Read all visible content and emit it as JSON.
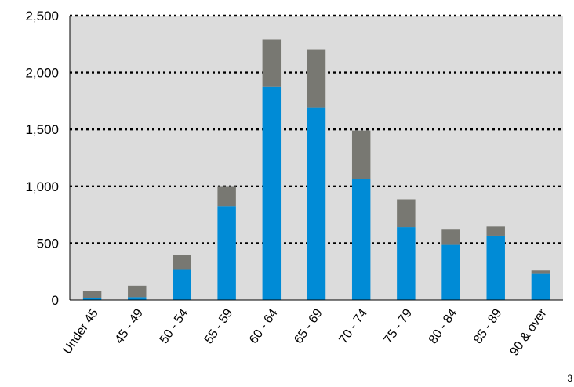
{
  "chart_data": {
    "type": "bar",
    "stacked": true,
    "categories": [
      "Under 45",
      "45 - 49",
      "50 - 54",
      "55 - 59",
      "60 - 64",
      "65 - 69",
      "70 - 74",
      "75 - 79",
      "80 - 84",
      "85 - 89",
      "90 & over"
    ],
    "series": [
      {
        "color": "#008bd6",
        "values": [
          15,
          25,
          265,
          825,
          1875,
          1690,
          1065,
          640,
          485,
          565,
          230
        ]
      },
      {
        "color": "#787872",
        "values": [
          65,
          100,
          130,
          170,
          415,
          510,
          425,
          245,
          140,
          80,
          30
        ]
      }
    ],
    "y_ticks": [
      "0",
      "500",
      "1,000",
      "1,500",
      "2,000",
      "2,500"
    ],
    "ylim": [
      0,
      2500
    ],
    "grid": "horizontal-dotted",
    "plot_background": "#dcdcdc",
    "legend": "none"
  },
  "page_number": "3"
}
